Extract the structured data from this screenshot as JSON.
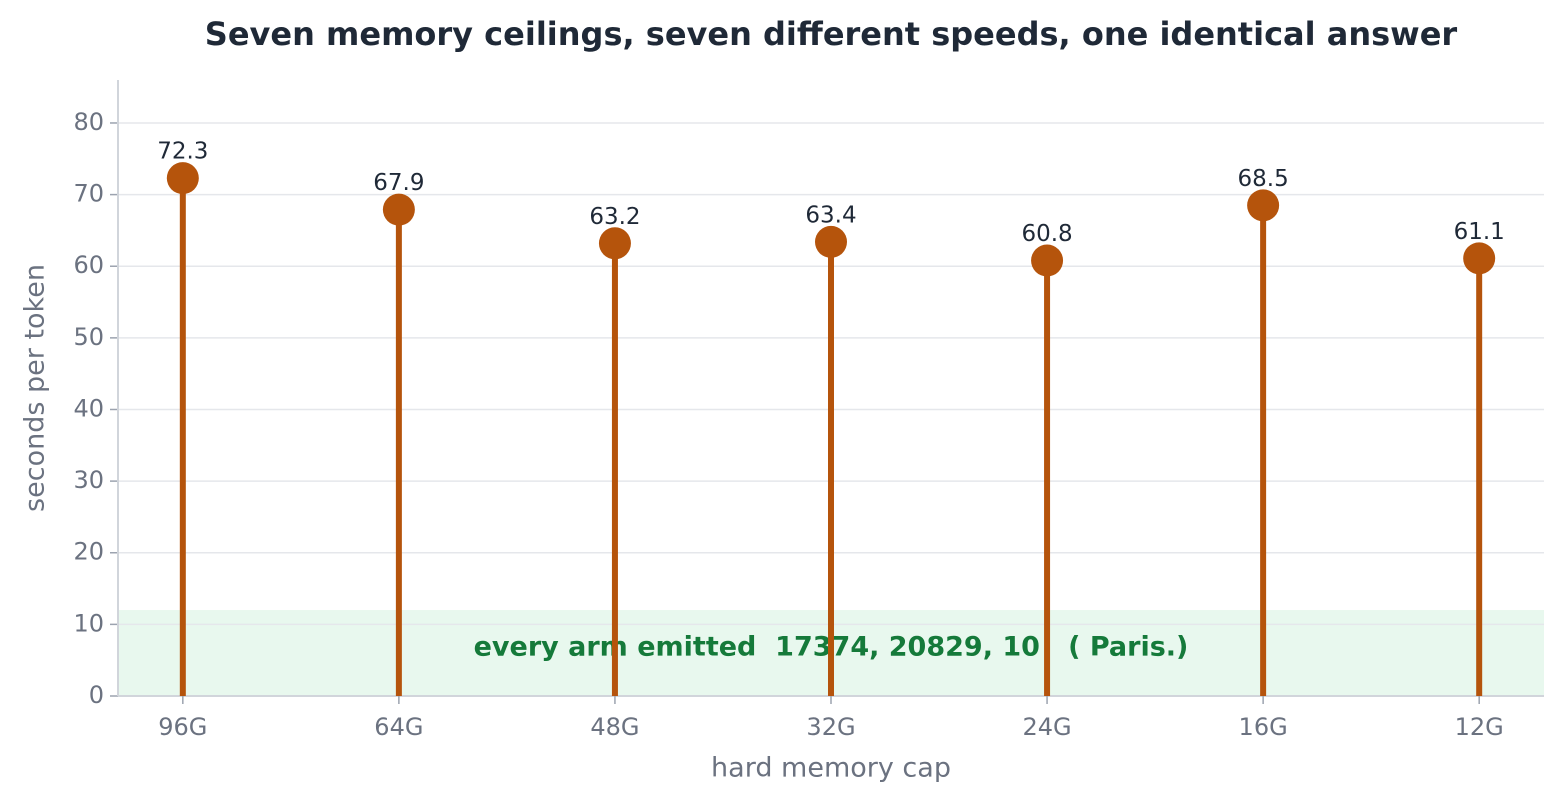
{
  "chart_data": {
    "type": "lollipop",
    "title": "Seven memory ceilings, seven different speeds, one identical answer",
    "x_label": "hard memory cap",
    "y_label": "seconds per token",
    "categories": [
      "96G",
      "64G",
      "48G",
      "32G",
      "24G",
      "16G",
      "12G"
    ],
    "values": [
      72.3,
      67.9,
      63.2,
      63.4,
      60.8,
      68.5,
      61.1
    ],
    "color": "#b5540c",
    "ylim": [
      0,
      86
    ],
    "yticks": [
      0,
      10,
      20,
      30,
      40,
      50,
      60,
      70,
      80
    ],
    "grid": true,
    "band": {
      "ylim": [
        0,
        12
      ],
      "color": "#e8f8ee",
      "text": "every arm emitted  17374, 20829, 10   ( Paris.)",
      "text_color": "#157a3a"
    }
  }
}
